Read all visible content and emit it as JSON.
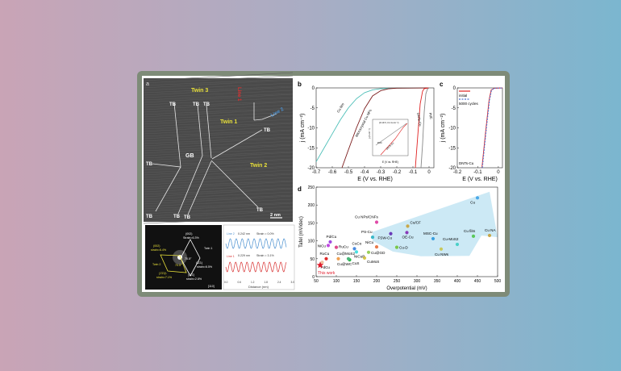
{
  "colors": {
    "frame": "#7e8b78",
    "twin_label": "#e8e03a",
    "line1": "#d83030",
    "line2": "#4a90d0",
    "region": "#bfe3f3"
  },
  "panel_a": {
    "letter": "a",
    "labels": {
      "twin3": "Twin 3",
      "twin1": "Twin 1",
      "twin2": "Twin 2",
      "gb": "GB",
      "tb": "TB",
      "line1": "Line 1",
      "line2": "Line 2",
      "scale": "2 nm"
    },
    "fft": {
      "t002": "(002)",
      "s1": "Strain=6.3%",
      "twin1": "Twin 1",
      "y002": "(002)",
      "s2": "strain=6.4%",
      "twin2": "Twin 2",
      "a1": "70.5°",
      "a2": "70.5°",
      "t111": "(11̄1)",
      "s3": "strain=6.5%",
      "y111": "(1̄1̄1)\\",
      "s4": "strain=7.1%",
      "t11b": "(11̄1̄)",
      "s5": "strain=2.8%",
      "zone": "[110]"
    },
    "profile": {
      "line2": "Line 2",
      "d2": "0.242 nm",
      "st2": "Strain = 0.0%",
      "line1": "Line 1",
      "d1": "0.229 nm",
      "st1": "Strain = 3.1%",
      "xlabel": "Distance (nm)",
      "xticks": [
        "0.0",
        "0.6",
        "1.2",
        "1.8",
        "2.4",
        "3.0"
      ]
    }
  },
  "chart_data": [
    {
      "panel": "b",
      "type": "line",
      "xlabel": "E (V vs. RHE)",
      "ylabel": "j (mA cm⁻²)",
      "xlim": [
        -0.7,
        0.03
      ],
      "ylim": [
        -20,
        0
      ],
      "xticks": [
        -0.7,
        -0.6,
        -0.5,
        -0.4,
        -0.3,
        -0.2,
        -0.1,
        0
      ],
      "yticks": [
        0,
        -5,
        -10,
        -15,
        -20
      ],
      "series": [
        {
          "name": "Cu film",
          "color": "#4dbfb8",
          "x": [
            -0.7,
            -0.65,
            -0.6,
            -0.55,
            -0.5,
            -0.45,
            -0.4,
            -0.35,
            -0.3,
            -0.2,
            0
          ],
          "y": [
            -18.5,
            -15,
            -11.5,
            -8,
            -5,
            -2.7,
            -1.2,
            -0.5,
            -0.2,
            -0.05,
            0
          ]
        },
        {
          "name": "Microcrystal Cu NPs",
          "color": "#7a1a1a",
          "x": [
            -0.54,
            -0.5,
            -0.45,
            -0.4,
            -0.35,
            -0.3,
            -0.25,
            -0.2,
            0
          ],
          "y": [
            -20,
            -15.5,
            -10,
            -5.2,
            -2,
            -0.7,
            -0.2,
            -0.05,
            0
          ]
        },
        {
          "name": "DNTs-Cu",
          "color": "#e02020",
          "x": [
            -0.085,
            -0.07,
            -0.055,
            -0.04,
            -0.03,
            0
          ],
          "y": [
            -20,
            -12,
            -4,
            -0.8,
            -0.2,
            0
          ]
        },
        {
          "name": "Pt/C",
          "color": "#888888",
          "x": [
            -0.05,
            -0.04,
            -0.03,
            -0.02,
            -0.01,
            0
          ],
          "y": [
            -20,
            -14,
            -6,
            -1.5,
            -0.3,
            0
          ]
        }
      ],
      "inset": {
        "label": "(0.19 V, 0.1 A cm⁻²)",
        "xlabel": "E (V vs. RHE)",
        "ylabel": "j (A cm⁻²)",
        "series": [
          "Pt/C",
          "DNTs-Cu"
        ]
      }
    },
    {
      "panel": "c",
      "type": "line",
      "xlabel": "E (V vs. RHE)",
      "ylabel": "j (mA cm⁻²)",
      "xlim": [
        -0.2,
        0.02
      ],
      "ylim": [
        -20,
        0
      ],
      "xticks": [
        -0.2,
        -0.1,
        0
      ],
      "yticks": [
        0,
        -5,
        -10,
        -15,
        -20
      ],
      "annotation": "DNTs-Cu",
      "series": [
        {
          "name": "initial",
          "color": "#e02020",
          "dash": false,
          "x": [
            -0.08,
            -0.06,
            -0.045,
            -0.035,
            -0.02,
            0.02
          ],
          "y": [
            -20,
            -10,
            -3,
            -0.5,
            -0.1,
            0
          ]
        },
        {
          "name": "5000 cycles",
          "color": "#4a6fd0",
          "dash": true,
          "x": [
            -0.078,
            -0.058,
            -0.043,
            -0.033,
            -0.018,
            0.02
          ],
          "y": [
            -20,
            -10,
            -3,
            -0.5,
            -0.1,
            0
          ]
        }
      ]
    },
    {
      "panel": "d",
      "type": "scatter",
      "xlabel": "Overpotential (mV)",
      "ylabel": "Tafel (mV/dec)",
      "xlim": [
        50,
        500
      ],
      "ylim": [
        0,
        250
      ],
      "xticks": [
        50,
        100,
        150,
        200,
        250,
        300,
        350,
        400,
        450,
        500
      ],
      "yticks": [
        0,
        50,
        100,
        150,
        200,
        250
      ],
      "points": [
        {
          "label": "Cu",
          "x": 450,
          "y": 220,
          "color": "#4aa8e8"
        },
        {
          "label": "Cu NA",
          "x": 480,
          "y": 115,
          "color": "#c8a84a"
        },
        {
          "label": "Cu film",
          "x": 440,
          "y": 113,
          "color": "#5ac85a"
        },
        {
          "label": "Cu-MoS2",
          "x": 400,
          "y": 90,
          "color": "#4ad0c8"
        },
        {
          "label": "Cu NWs",
          "x": 360,
          "y": 77,
          "color": "#c8c85a"
        },
        {
          "label": "MSC-Cu",
          "x": 340,
          "y": 106,
          "color": "#3aa0e0"
        },
        {
          "label": "Cu-D",
          "x": 250,
          "y": 82,
          "color": "#7ac84a"
        },
        {
          "label": "OE-Cu",
          "x": 275,
          "y": 123,
          "color": "#8a3ab8"
        },
        {
          "label": "FSW-Cu",
          "x": 235,
          "y": 120,
          "color": "#6a3ab8"
        },
        {
          "label": "Cu/CF",
          "x": 277,
          "y": 141,
          "color": "#c8a84a"
        },
        {
          "label": "Cu NPs/CNFs",
          "x": 200,
          "y": 152,
          "color": "#e04aa8"
        },
        {
          "label": "PS-Cu",
          "x": 190,
          "y": 110,
          "color": "#3ab8c8"
        },
        {
          "label": "NiCu",
          "x": 200,
          "y": 83,
          "color": "#e87a4a"
        },
        {
          "label": "Cu@GD",
          "x": 180,
          "y": 68,
          "color": "#9ad05a"
        },
        {
          "label": "CuMoS",
          "x": 170,
          "y": 52,
          "color": "#d8c84a"
        },
        {
          "label": "NiCuP",
          "x": 150,
          "y": 69,
          "color": "#4ae0e0"
        },
        {
          "label": "CuCo",
          "x": 145,
          "y": 78,
          "color": "#4a8ae0"
        },
        {
          "label": "CuS",
          "x": 133,
          "y": 47,
          "color": "#2ab84a"
        },
        {
          "label": "Cu@WC",
          "x": 130,
          "y": 50,
          "color": "#4ab87a"
        },
        {
          "label": "Cu@MoS2",
          "x": 105,
          "y": 50,
          "color": "#f0a050"
        },
        {
          "label": "RuCu",
          "x": 100,
          "y": 82,
          "color": "#e04a8a"
        },
        {
          "label": "Pd/Cu",
          "x": 85,
          "y": 97,
          "color": "#a04ae0"
        },
        {
          "label": "NiCu",
          "x": 80,
          "y": 87,
          "color": "#c04ae0"
        },
        {
          "label": "RuCu",
          "x": 75,
          "y": 50,
          "color": "#e02a2a"
        },
        {
          "label": "PdCu",
          "x": 65,
          "y": 40,
          "color": "#f0c0a0"
        },
        {
          "label": "This work",
          "x": 60,
          "y": 32,
          "color": "#e01a2a",
          "marker": "star"
        }
      ]
    }
  ]
}
